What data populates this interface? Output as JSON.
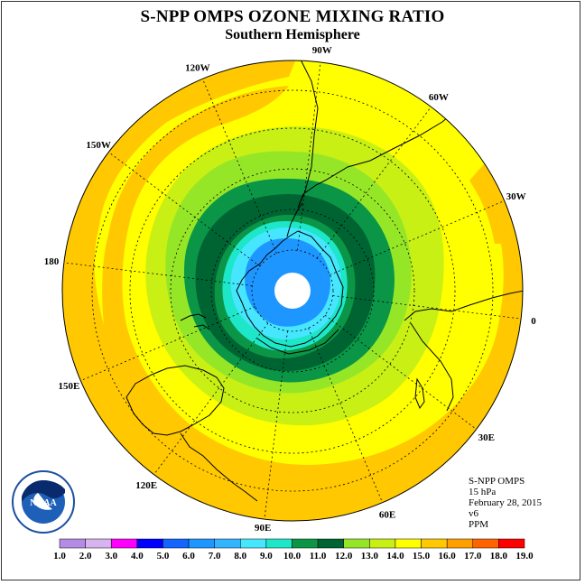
{
  "title": "S-NPP OMPS OZONE MIXING RATIO",
  "subtitle": "Southern Hemisphere",
  "longitude_labels": [
    "0",
    "30W",
    "60W",
    "90W",
    "120W",
    "150W",
    "180",
    "150E",
    "120E",
    "90E",
    "60E",
    "30E"
  ],
  "info": {
    "instrument": "S-NPP OMPS",
    "level": "15 hPa",
    "date": "February 28, 2015",
    "version": "v6",
    "units": "PPM"
  },
  "colorbar": {
    "labels": [
      "1.0",
      "2.0",
      "3.0",
      "4.0",
      "5.0",
      "6.0",
      "7.0",
      "8.0",
      "9.0",
      "10.0",
      "11.0",
      "12.0",
      "13.0",
      "14.0",
      "15.0",
      "16.0",
      "17.0",
      "18.0",
      "19.0"
    ],
    "colors": [
      "#b48ce6",
      "#d7b4f0",
      "#ff00ff",
      "#0000ff",
      "#1464ff",
      "#1e96ff",
      "#32b4ff",
      "#46e6ff",
      "#1ee6c8",
      "#0a9646",
      "#006432",
      "#96e628",
      "#c8f014",
      "#ffff00",
      "#ffc800",
      "#ffa000",
      "#ff6400",
      "#ff0000",
      "#8c5a32"
    ]
  },
  "map_colors": {
    "hole": "#ffffff",
    "lightblue": "#1e96ff",
    "sky": "#46e6ff",
    "cyan": "#1ee6c8",
    "green": "#0a9646",
    "darkgreen": "#006432",
    "lime": "#96e628",
    "yellowgreen": "#c8f014",
    "yellow": "#ffff00",
    "orange": "#ffc800"
  },
  "logo": {
    "text": "NOAA"
  }
}
